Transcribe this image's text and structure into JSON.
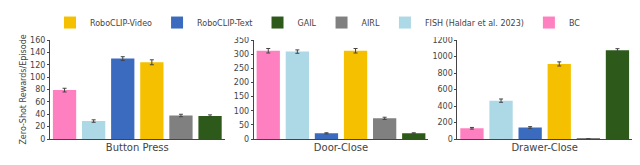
{
  "chart_data": [
    {
      "type": "bar",
      "xlabel": "Button Press",
      "ylabel": "Zero-Shot Rewards/Episode",
      "categories": [
        null,
        null,
        null,
        null,
        null,
        null
      ],
      "series": [
        {
          "name": "RoboCLIP-Video",
          "color": "#F5C000",
          "values": [
            null,
            null,
            null,
            124,
            null,
            null
          ],
          "errors": [
            null,
            null,
            null,
            4,
            null,
            null
          ]
        },
        {
          "name": "RoboCLIP-Text",
          "color": "#3A6BBF",
          "values": [
            null,
            null,
            130,
            null,
            null,
            null
          ],
          "errors": [
            null,
            null,
            3,
            null,
            null,
            null
          ]
        },
        {
          "name": "GAIL",
          "color": "#2D5A1B",
          "values": [
            null,
            null,
            null,
            null,
            null,
            37
          ],
          "errors": [
            null,
            null,
            null,
            null,
            null,
            2
          ]
        },
        {
          "name": "AIRL",
          "color": "#808080",
          "values": [
            null,
            null,
            null,
            null,
            38,
            null
          ],
          "errors": [
            null,
            null,
            null,
            null,
            2,
            null
          ]
        },
        {
          "name": "FISH (Haldar et al. 2023)",
          "color": "#ADD8E6",
          "values": [
            null,
            29,
            null,
            null,
            null,
            null
          ],
          "errors": [
            null,
            2,
            null,
            null,
            null,
            null
          ]
        },
        {
          "name": "BC",
          "color": "#FF80C0",
          "values": [
            79,
            null,
            null,
            null,
            null,
            null
          ],
          "errors": [
            3,
            null,
            null,
            null,
            null,
            null
          ]
        }
      ],
      "ylim": [
        0,
        160
      ],
      "yticks": [
        0,
        20,
        40,
        60,
        80,
        100,
        120,
        140,
        160
      ],
      "grid": false,
      "tick_labels": "y",
      "legend": "top"
    },
    {
      "type": "bar",
      "xlabel": "Door-Close",
      "categories": [
        null,
        null,
        null,
        null,
        null,
        null
      ],
      "series": [
        {
          "name": "RoboCLIP-Video",
          "color": "#F5C000",
          "values": [
            null,
            null,
            null,
            312,
            null,
            null
          ],
          "errors": [
            null,
            null,
            null,
            8,
            null,
            null
          ]
        },
        {
          "name": "RoboCLIP-Text",
          "color": "#3A6BBF",
          "values": [
            null,
            null,
            20,
            null,
            null,
            null
          ],
          "errors": [
            null,
            null,
            2,
            null,
            null,
            null
          ]
        },
        {
          "name": "GAIL",
          "color": "#2D5A1B",
          "values": [
            null,
            null,
            null,
            null,
            null,
            20
          ],
          "errors": [
            null,
            null,
            null,
            null,
            null,
            2
          ]
        },
        {
          "name": "AIRL",
          "color": "#808080",
          "values": [
            null,
            null,
            null,
            null,
            73,
            null
          ],
          "errors": [
            null,
            null,
            null,
            null,
            4,
            null
          ]
        },
        {
          "name": "FISH (Haldar et al. 2023)",
          "color": "#ADD8E6",
          "values": [
            null,
            309,
            null,
            null,
            null,
            null
          ],
          "errors": [
            null,
            6,
            null,
            null,
            null,
            null
          ]
        },
        {
          "name": "BC",
          "color": "#FF80C0",
          "values": [
            312,
            null,
            null,
            null,
            null,
            null
          ],
          "errors": [
            8,
            null,
            null,
            null,
            null,
            null
          ]
        }
      ],
      "ylim": [
        0,
        350
      ],
      "yticks": [
        0,
        50,
        100,
        150,
        200,
        250,
        300,
        350
      ],
      "grid": false,
      "tick_labels": "y"
    },
    {
      "type": "bar",
      "xlabel": "Drawer-Close",
      "categories": [
        null,
        null,
        null,
        null,
        null,
        null
      ],
      "series": [
        {
          "name": "RoboCLIP-Video",
          "color": "#F5C000",
          "values": [
            null,
            null,
            null,
            910,
            null,
            null
          ],
          "errors": [
            null,
            null,
            null,
            25,
            null,
            null
          ]
        },
        {
          "name": "RoboCLIP-Text",
          "color": "#3A6BBF",
          "values": [
            null,
            null,
            140,
            null,
            null,
            null
          ],
          "errors": [
            null,
            null,
            10,
            null,
            null,
            null
          ]
        },
        {
          "name": "GAIL",
          "color": "#2D5A1B",
          "values": [
            null,
            null,
            null,
            null,
            null,
            1075
          ],
          "errors": [
            null,
            null,
            null,
            null,
            null,
            20
          ]
        },
        {
          "name": "AIRL",
          "color": "#808080",
          "values": [
            null,
            null,
            null,
            null,
            2,
            null
          ],
          "errors": [
            null,
            null,
            null,
            null,
            1,
            null
          ]
        },
        {
          "name": "FISH (Haldar et al. 2023)",
          "color": "#ADD8E6",
          "values": [
            null,
            465,
            null,
            null,
            null,
            null
          ],
          "errors": [
            null,
            20,
            null,
            null,
            null,
            null
          ]
        },
        {
          "name": "BC",
          "color": "#FF80C0",
          "values": [
            130,
            null,
            null,
            null,
            null,
            null
          ],
          "errors": [
            10,
            null,
            null,
            null,
            null,
            null
          ]
        }
      ],
      "ylim": [
        0,
        1200
      ],
      "yticks": [
        0,
        200,
        400,
        600,
        800,
        1000,
        1200
      ],
      "grid": false,
      "tick_labels": "y"
    }
  ]
}
